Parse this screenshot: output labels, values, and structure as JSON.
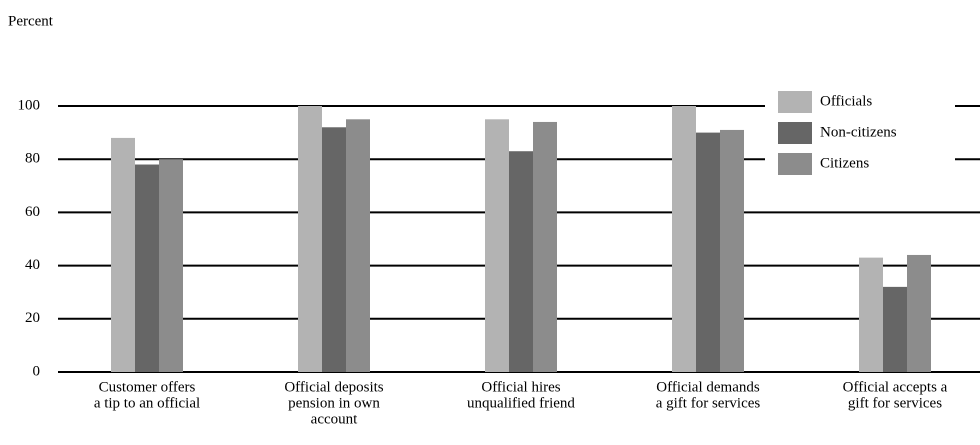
{
  "chart_data": {
    "type": "bar",
    "y_label": "Percent",
    "categories": [
      [
        "Customer offers",
        "a tip to an official"
      ],
      [
        "Official deposits",
        "pension in own",
        "account"
      ],
      [
        "Official hires",
        "unqualified friend"
      ],
      [
        "Official demands",
        "a gift for services"
      ],
      [
        "Official accepts a",
        "gift for services"
      ]
    ],
    "series": [
      {
        "name": "Officials",
        "color": "#b3b3b3",
        "values": [
          88,
          100,
          95,
          100,
          43
        ]
      },
      {
        "name": "Non-citizens",
        "color": "#666666",
        "values": [
          78,
          92,
          83,
          90,
          32
        ]
      },
      {
        "name": "Citizens",
        "color": "#8c8c8c",
        "values": [
          80,
          95,
          94,
          91,
          44
        ]
      }
    ],
    "ylim": [
      0,
      100
    ],
    "yticks": [
      0,
      20,
      40,
      60,
      80,
      100
    ],
    "grid": true,
    "legend": "upper right"
  }
}
